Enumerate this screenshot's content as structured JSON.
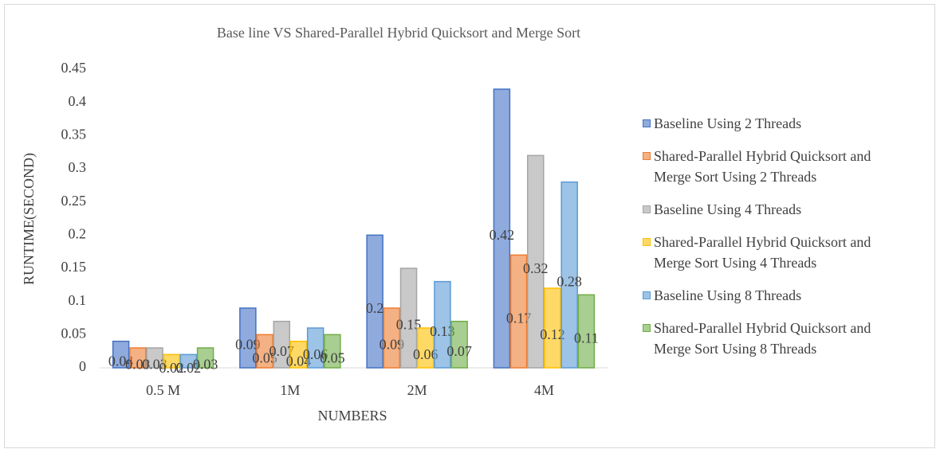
{
  "chart_data": {
    "type": "bar",
    "title": "Base line VS Shared-Parallel Hybrid Quicksort and Merge Sort",
    "x_label": "NUMBERS",
    "y_label": "RUNTIME(SECOND)",
    "categories": [
      "0.5 M",
      "1M",
      "2M",
      "4M"
    ],
    "series": [
      {
        "name": "Baseline Using 2 Threads",
        "color": "#4472c4",
        "values": [
          0.04,
          0.09,
          0.2,
          0.42
        ]
      },
      {
        "name": "Shared-Parallel Hybrid Quicksort and Merge Sort Using 2 Threads",
        "color": "#ed7d31",
        "values": [
          0.03,
          0.05,
          0.09,
          0.17
        ]
      },
      {
        "name": "Baseline Using 4 Threads",
        "color": "#a5a5a5",
        "values": [
          0.03,
          0.07,
          0.15,
          0.32
        ]
      },
      {
        "name": "Shared-Parallel Hybrid Quicksort and Merge Sort Using 4 Threads",
        "color": "#ffc000",
        "values": [
          0.02,
          0.04,
          0.06,
          0.12
        ]
      },
      {
        "name": "Baseline Using 8 Threads",
        "color": "#5b9bd5",
        "values": [
          0.02,
          0.06,
          0.13,
          0.28
        ]
      },
      {
        "name": "Shared-Parallel Hybrid Quicksort and Merge Sort Using 8 Threads",
        "color": "#70ad47",
        "values": [
          0.03,
          0.05,
          0.07,
          0.11
        ]
      }
    ],
    "ylim": [
      0,
      0.45
    ],
    "yticks": [
      0,
      0.05,
      0.1,
      0.15,
      0.2,
      0.25,
      0.3,
      0.35,
      0.4,
      0.45
    ],
    "grid": false,
    "legend": "right"
  }
}
